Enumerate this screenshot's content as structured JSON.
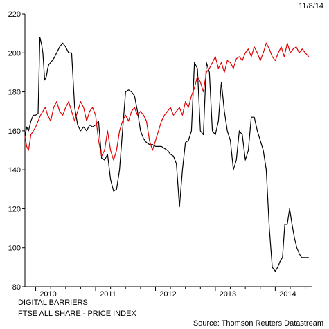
{
  "date_label": "11/8/14",
  "source": "Source: Thomson Reuters Datastream",
  "chart_data": {
    "type": "line",
    "ylim": [
      80,
      220
    ],
    "yticks": [
      80,
      100,
      120,
      140,
      160,
      180,
      200,
      220
    ],
    "xlim": [
      2009.82,
      2014.62
    ],
    "xticks": [
      {
        "label": "2010",
        "pos": 2010.0
      },
      {
        "label": "2011",
        "pos": 2011.0
      },
      {
        "label": "2012",
        "pos": 2012.0
      },
      {
        "label": "2013",
        "pos": 2013.0
      },
      {
        "label": "2014",
        "pos": 2014.0
      }
    ],
    "grid": false,
    "legend_position": "bottom-left",
    "series": [
      {
        "name": "DIGITAL BARRIERS",
        "color": "#000000",
        "x": [
          2009.82,
          2009.85,
          2009.88,
          2009.92,
          2009.96,
          2010.0,
          2010.04,
          2010.07,
          2010.1,
          2010.12,
          2010.15,
          2010.18,
          2010.2,
          2010.22,
          2010.25,
          2010.3,
          2010.35,
          2010.4,
          2010.45,
          2010.5,
          2010.55,
          2010.6,
          2010.65,
          2010.7,
          2010.75,
          2010.8,
          2010.85,
          2010.9,
          2010.95,
          2011.0,
          2011.05,
          2011.1,
          2011.15,
          2011.2,
          2011.25,
          2011.3,
          2011.35,
          2011.4,
          2011.45,
          2011.5,
          2011.55,
          2011.6,
          2011.65,
          2011.7,
          2011.75,
          2011.8,
          2011.85,
          2011.9,
          2011.95,
          2012.0,
          2012.05,
          2012.1,
          2012.15,
          2012.2,
          2012.25,
          2012.3,
          2012.35,
          2012.4,
          2012.45,
          2012.5,
          2012.55,
          2012.6,
          2012.65,
          2012.7,
          2012.75,
          2012.8,
          2012.85,
          2012.9,
          2012.95,
          2013.0,
          2013.05,
          2013.1,
          2013.15,
          2013.2,
          2013.25,
          2013.3,
          2013.35,
          2013.4,
          2013.45,
          2013.5,
          2013.55,
          2013.6,
          2013.65,
          2013.7,
          2013.75,
          2013.8,
          2013.85,
          2013.9,
          2013.95,
          2014.0,
          2014.04,
          2014.08,
          2014.12,
          2014.16,
          2014.2,
          2014.24,
          2014.28,
          2014.32,
          2014.36,
          2014.4,
          2014.44,
          2014.48,
          2014.52,
          2014.56
        ],
        "y": [
          157,
          162,
          160,
          165,
          168,
          168,
          169,
          208,
          204,
          200,
          186,
          188,
          192,
          194,
          195,
          197,
          200,
          203,
          205,
          203,
          200,
          200,
          172,
          163,
          160,
          162,
          160,
          163,
          162,
          163,
          165,
          146,
          145,
          148,
          135,
          129,
          130,
          140,
          160,
          180,
          181,
          180,
          178,
          170,
          160,
          156,
          154,
          153,
          153,
          152,
          152,
          152,
          151,
          150,
          148,
          147,
          143,
          121,
          140,
          154,
          155,
          160,
          195,
          192,
          160,
          158,
          195,
          190,
          160,
          158,
          165,
          185,
          170,
          160,
          155,
          140,
          145,
          160,
          158,
          145,
          150,
          167,
          167,
          160,
          155,
          150,
          140,
          110,
          90,
          88,
          90,
          93,
          95,
          112,
          112,
          120,
          112,
          105,
          100,
          97,
          95,
          95,
          95,
          95
        ]
      },
      {
        "name": "FTSE ALL SHARE - PRICE INDEX",
        "color": "#e00000",
        "x": [
          2009.82,
          2009.85,
          2009.88,
          2009.92,
          2009.96,
          2010.0,
          2010.04,
          2010.08,
          2010.12,
          2010.16,
          2010.2,
          2010.25,
          2010.3,
          2010.35,
          2010.4,
          2010.45,
          2010.5,
          2010.55,
          2010.6,
          2010.65,
          2010.7,
          2010.75,
          2010.8,
          2010.85,
          2010.9,
          2010.95,
          2011.0,
          2011.05,
          2011.1,
          2011.15,
          2011.2,
          2011.25,
          2011.3,
          2011.35,
          2011.4,
          2011.45,
          2011.5,
          2011.55,
          2011.6,
          2011.65,
          2011.7,
          2011.75,
          2011.8,
          2011.85,
          2011.9,
          2011.95,
          2012.0,
          2012.05,
          2012.1,
          2012.15,
          2012.2,
          2012.25,
          2012.3,
          2012.35,
          2012.4,
          2012.45,
          2012.5,
          2012.55,
          2012.6,
          2012.65,
          2012.7,
          2012.75,
          2012.8,
          2012.85,
          2012.9,
          2012.95,
          2013.0,
          2013.05,
          2013.1,
          2013.15,
          2013.2,
          2013.25,
          2013.3,
          2013.35,
          2013.4,
          2013.45,
          2013.5,
          2013.55,
          2013.6,
          2013.65,
          2013.7,
          2013.75,
          2013.8,
          2013.85,
          2013.9,
          2013.95,
          2014.0,
          2014.05,
          2014.1,
          2014.15,
          2014.2,
          2014.25,
          2014.3,
          2014.35,
          2014.4,
          2014.45,
          2014.5,
          2014.56
        ],
        "y": [
          157,
          152,
          150,
          158,
          160,
          162,
          165,
          168,
          170,
          172,
          168,
          165,
          172,
          175,
          170,
          168,
          172,
          175,
          170,
          165,
          170,
          175,
          172,
          165,
          170,
          172,
          168,
          155,
          147,
          150,
          160,
          150,
          145,
          150,
          160,
          165,
          168,
          165,
          170,
          172,
          168,
          170,
          168,
          165,
          155,
          150,
          155,
          160,
          165,
          168,
          170,
          172,
          168,
          170,
          172,
          168,
          175,
          172,
          178,
          182,
          188,
          185,
          180,
          190,
          192,
          195,
          198,
          192,
          195,
          190,
          196,
          195,
          192,
          197,
          198,
          196,
          200,
          202,
          198,
          203,
          200,
          196,
          200,
          205,
          202,
          198,
          196,
          200,
          203,
          198,
          205,
          200,
          202,
          203,
          200,
          202,
          200,
          198
        ]
      }
    ]
  }
}
